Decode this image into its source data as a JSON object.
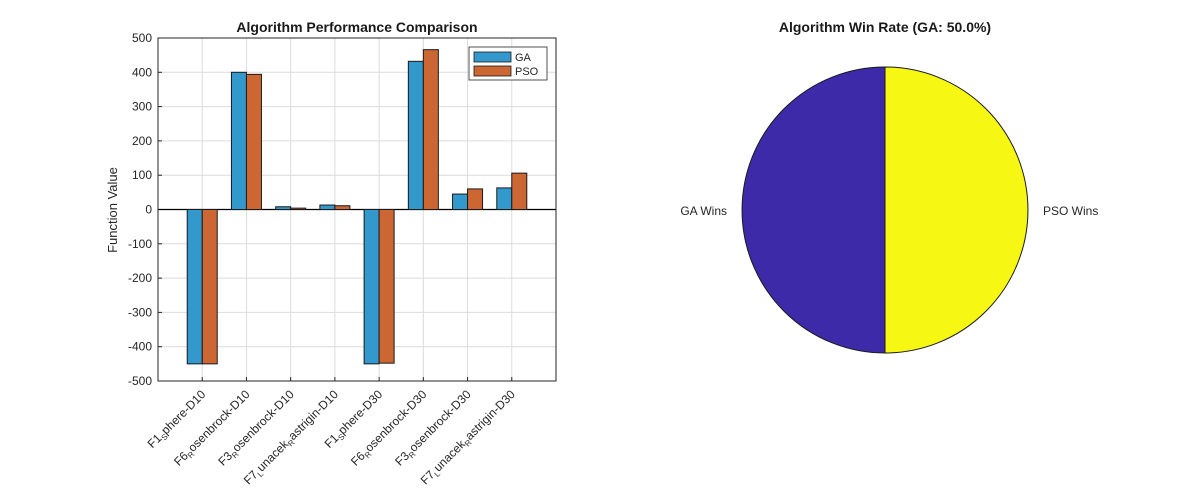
{
  "colors": {
    "ga": "#3399cc",
    "pso": "#cc6633",
    "pie_ga": "#3d2aa8",
    "pie_pso": "#f7f714",
    "grid": "#dcdcdc",
    "axis": "#262626"
  },
  "chart_data": [
    {
      "type": "bar",
      "title": "Algorithm Performance Comparison",
      "xlabel": "",
      "ylabel": "Function Value",
      "ylim": [
        -500,
        500
      ],
      "yticks": [
        -500,
        -400,
        -300,
        -200,
        -100,
        0,
        100,
        200,
        300,
        400,
        500
      ],
      "grid": true,
      "legend_position": "top-right",
      "categories": [
        {
          "base": "F1",
          "sub": "S",
          "rest": "phere-D10"
        },
        {
          "base": "F6",
          "sub": "R",
          "rest": "osenbrock-D10"
        },
        {
          "base": "F3",
          "sub": "R",
          "rest": "osenbrock-D10"
        },
        {
          "base": "F7",
          "sub": "L",
          "rest": "unacek",
          "sub2": "R",
          "rest2": "astrigin-D10"
        },
        {
          "base": "F1",
          "sub": "S",
          "rest": "phere-D30"
        },
        {
          "base": "F6",
          "sub": "R",
          "rest": "osenbrock-D30"
        },
        {
          "base": "F3",
          "sub": "R",
          "rest": "osenbrock-D30"
        },
        {
          "base": "F7",
          "sub": "L",
          "rest": "unacek",
          "sub2": "R",
          "rest2": "astrigin-D30"
        }
      ],
      "series": [
        {
          "name": "GA",
          "values": [
            -450,
            400,
            8,
            13,
            -450,
            432,
            45,
            63
          ]
        },
        {
          "name": "PSO",
          "values": [
            -450,
            394,
            4,
            11,
            -448,
            466,
            60,
            106
          ]
        }
      ]
    },
    {
      "type": "pie",
      "title": "Algorithm Win Rate (GA: 50.0%)",
      "slices": [
        {
          "label": "GA Wins",
          "value": 50
        },
        {
          "label": "PSO Wins",
          "value": 50
        }
      ]
    }
  ]
}
